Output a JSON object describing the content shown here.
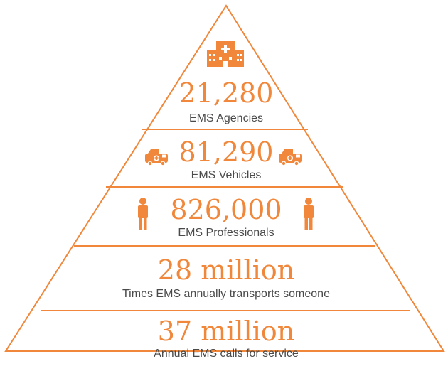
{
  "colors": {
    "accent": "#F0873A",
    "text": "#4a4a4a",
    "background": "#ffffff"
  },
  "tiers": [
    {
      "value": "21,280",
      "label": "EMS Agencies",
      "icon": "hospital-icon"
    },
    {
      "value": "81,290",
      "label": "EMS Vehicles",
      "icon": "ambulance-icon"
    },
    {
      "value": "826,000",
      "label": "EMS Professionals",
      "icon": "person-icon"
    },
    {
      "value": "28 million",
      "label": "Times EMS annually transports someone"
    },
    {
      "value": "37 million",
      "label": "Annual EMS calls for service"
    }
  ]
}
